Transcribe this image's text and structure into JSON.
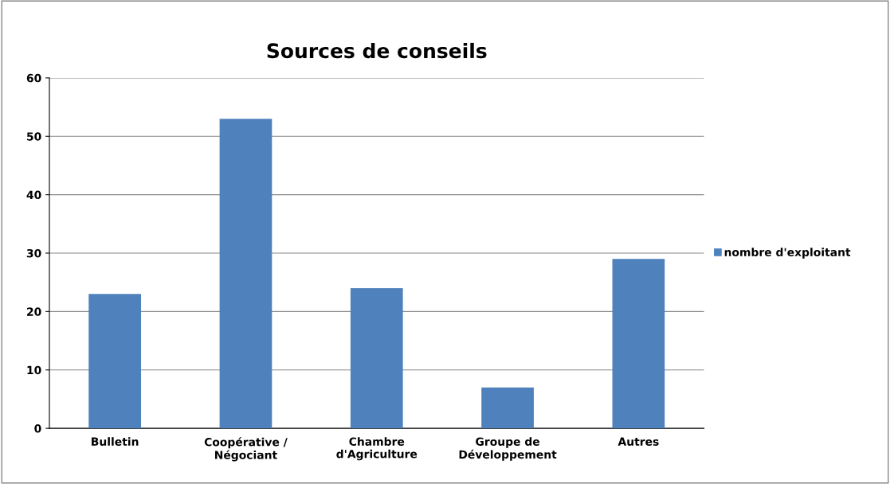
{
  "chart_data": {
    "type": "bar",
    "title": "Sources de conseils",
    "categories": [
      "Bulletin",
      "Coopérative /\nNégociant",
      "Chambre\nd'Agriculture",
      "Groupe de\nDéveloppement",
      "Autres"
    ],
    "series": [
      {
        "name": "nombre d'exploitant",
        "color": "#4f81bd",
        "values": [
          23,
          53,
          24,
          7,
          29
        ]
      }
    ],
    "ylim": [
      0,
      60
    ],
    "yticks": [
      0,
      10,
      20,
      30,
      40,
      50,
      60
    ],
    "grid": "y",
    "legend": "right"
  }
}
